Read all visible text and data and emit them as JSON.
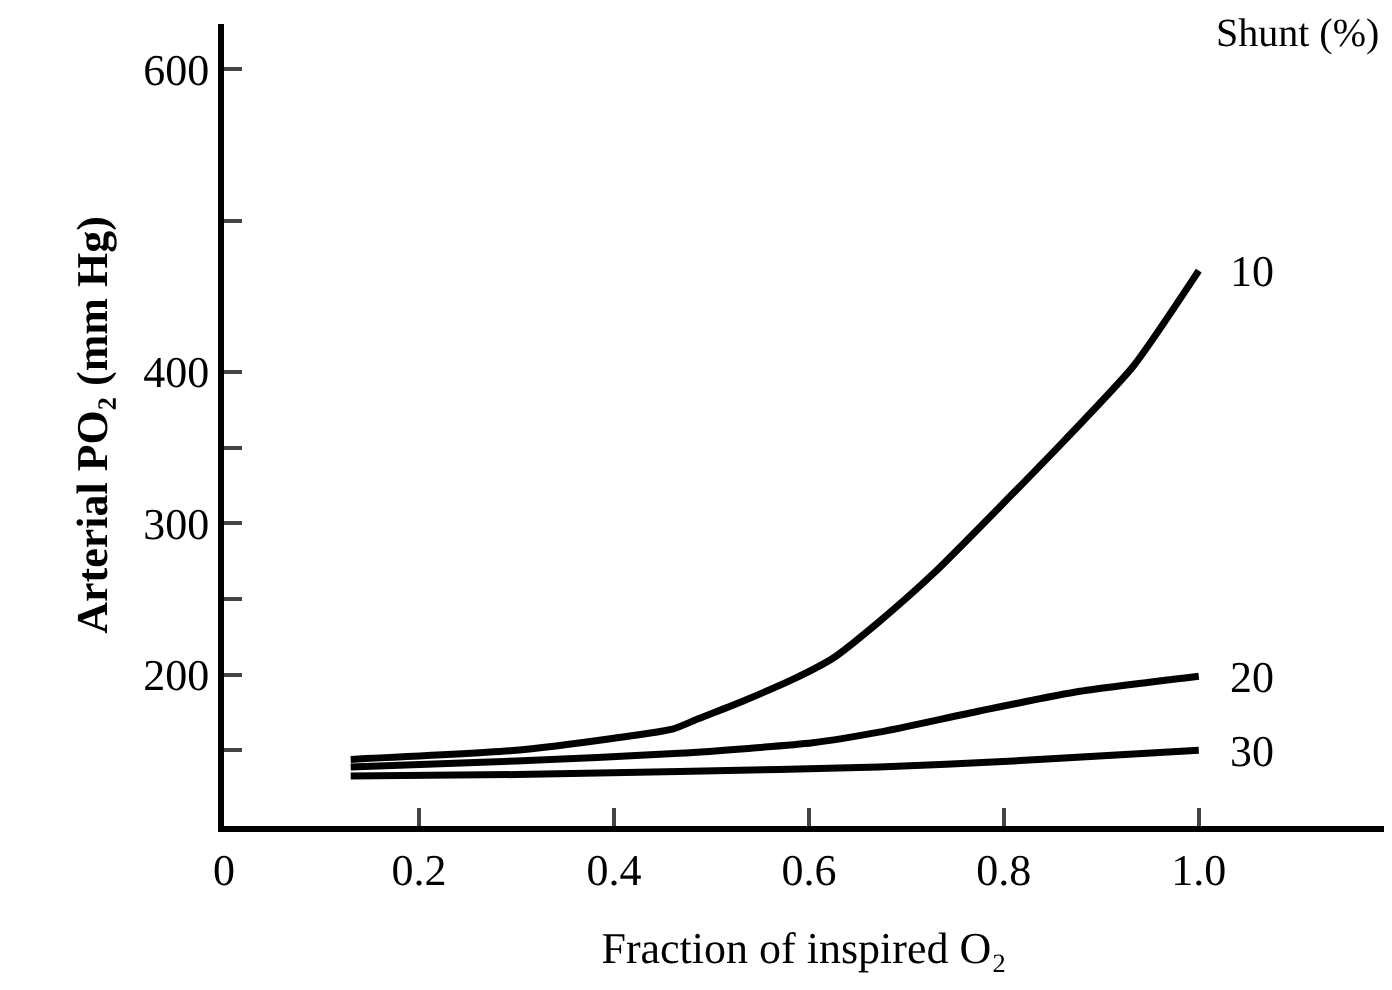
{
  "chart_data": {
    "type": "line",
    "xlabel": "Fraction of inspired O₂",
    "ylabel": "Arterial PO₂ (mm Hg)",
    "legend_title": "Shunt (%)",
    "xlim": [
      0,
      1.19
    ],
    "xticks": [
      0,
      0.2,
      0.4,
      0.6,
      0.8,
      {
        "value": 1.0,
        "label": "1.0"
      }
    ],
    "ylim": [
      100,
      630
    ],
    "yticks": [
      {
        "value": 150,
        "label": null
      },
      200,
      {
        "value": 250,
        "label": null
      },
      300,
      {
        "value": 350,
        "label": null
      },
      400,
      {
        "value": 500,
        "label": null
      },
      600
    ],
    "grid": false,
    "legend": false,
    "marker": "none",
    "line_style": "solid",
    "series": [
      {
        "name": "10",
        "color": "#000000",
        "x": [
          0.13,
          0.3,
          0.4,
          0.46,
          0.487,
          0.534,
          0.584,
          0.625,
          0.672,
          0.728,
          0.796,
          0.864,
          0.933,
          1.0
        ],
        "values": [
          144,
          150,
          158,
          164,
          171,
          183,
          197,
          211,
          235,
          267,
          311,
          356,
          404,
          467
        ]
      },
      {
        "name": "20",
        "color": "#000000",
        "x": [
          0.13,
          0.3,
          0.467,
          0.604,
          0.672,
          0.775,
          0.878,
          1.0
        ],
        "values": [
          139,
          143,
          148,
          155,
          162,
          176,
          189,
          199
        ]
      },
      {
        "name": "30",
        "color": "#000000",
        "x": [
          0.13,
          0.3,
          0.467,
          0.672,
          0.81,
          1.0
        ],
        "values": [
          133,
          134,
          136,
          139,
          143,
          150
        ]
      }
    ]
  }
}
